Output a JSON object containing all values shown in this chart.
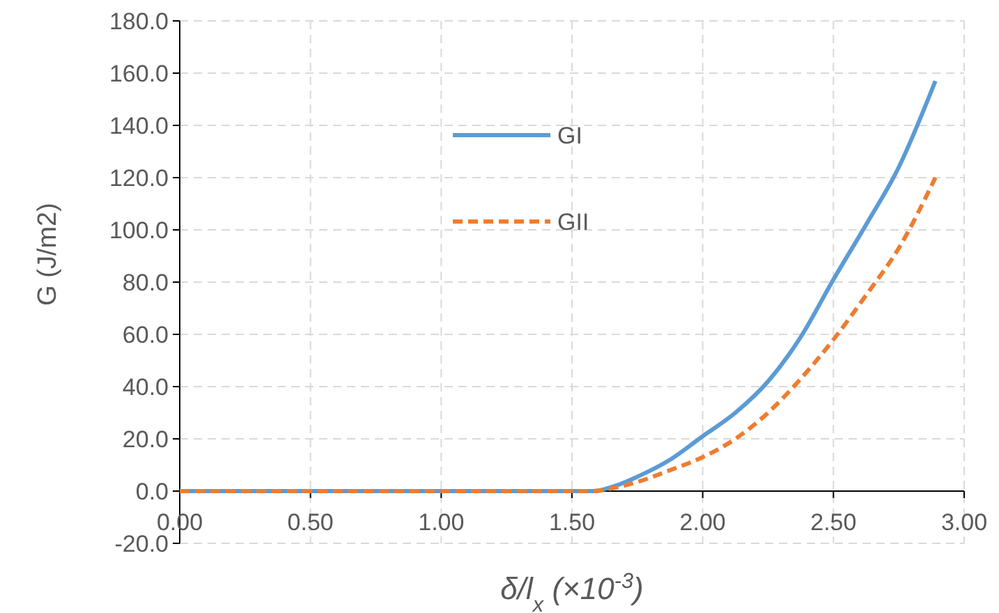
{
  "chart_data": {
    "type": "line",
    "xlabel": "δ/l$_{x}$ (×10$^{-3}$)",
    "ylabel": "G (J/m2)",
    "xlim": [
      0,
      3
    ],
    "ylim": [
      -20,
      180
    ],
    "xticks": [
      {
        "value": 0,
        "label": "0.00"
      },
      {
        "value": 0.5,
        "label": "0.50"
      },
      {
        "value": 1,
        "label": "1.00"
      },
      {
        "value": 1.5,
        "label": "1.50"
      },
      {
        "value": 2,
        "label": "2.00"
      },
      {
        "value": 2.5,
        "label": "2.50"
      },
      {
        "value": 3,
        "label": "3.00"
      }
    ],
    "yticks": [
      {
        "value": -20,
        "label": "-20.0"
      },
      {
        "value": 0,
        "label": "0.0"
      },
      {
        "value": 20,
        "label": "20.0"
      },
      {
        "value": 40,
        "label": "40.0"
      },
      {
        "value": 60,
        "label": "60.0"
      },
      {
        "value": 80,
        "label": "80.0"
      },
      {
        "value": 100,
        "label": "100.0"
      },
      {
        "value": 120,
        "label": "120.0"
      },
      {
        "value": 140,
        "label": "140.0"
      },
      {
        "value": 160,
        "label": "160.0"
      },
      {
        "value": 180,
        "label": "180.0"
      }
    ],
    "x": [
      0,
      1.58,
      1.65,
      1.75,
      1.875,
      2.0,
      2.125,
      2.25,
      2.375,
      2.5,
      2.625,
      2.75,
      2.89
    ],
    "series": [
      {
        "name": "GI",
        "color": "#5b9bd5",
        "line_style": "solid",
        "values": [
          0,
          0,
          1.5,
          5.5,
          12,
          21,
          30,
          42,
          59,
          81,
          102,
          124,
          157
        ]
      },
      {
        "name": "GII",
        "color": "#ed7d31",
        "line_style": "dashed",
        "values": [
          0,
          0,
          1,
          3.5,
          8,
          13,
          20,
          30,
          43,
          58,
          75,
          93,
          120
        ]
      }
    ],
    "grid": true,
    "legend": "top",
    "marker": "none"
  }
}
